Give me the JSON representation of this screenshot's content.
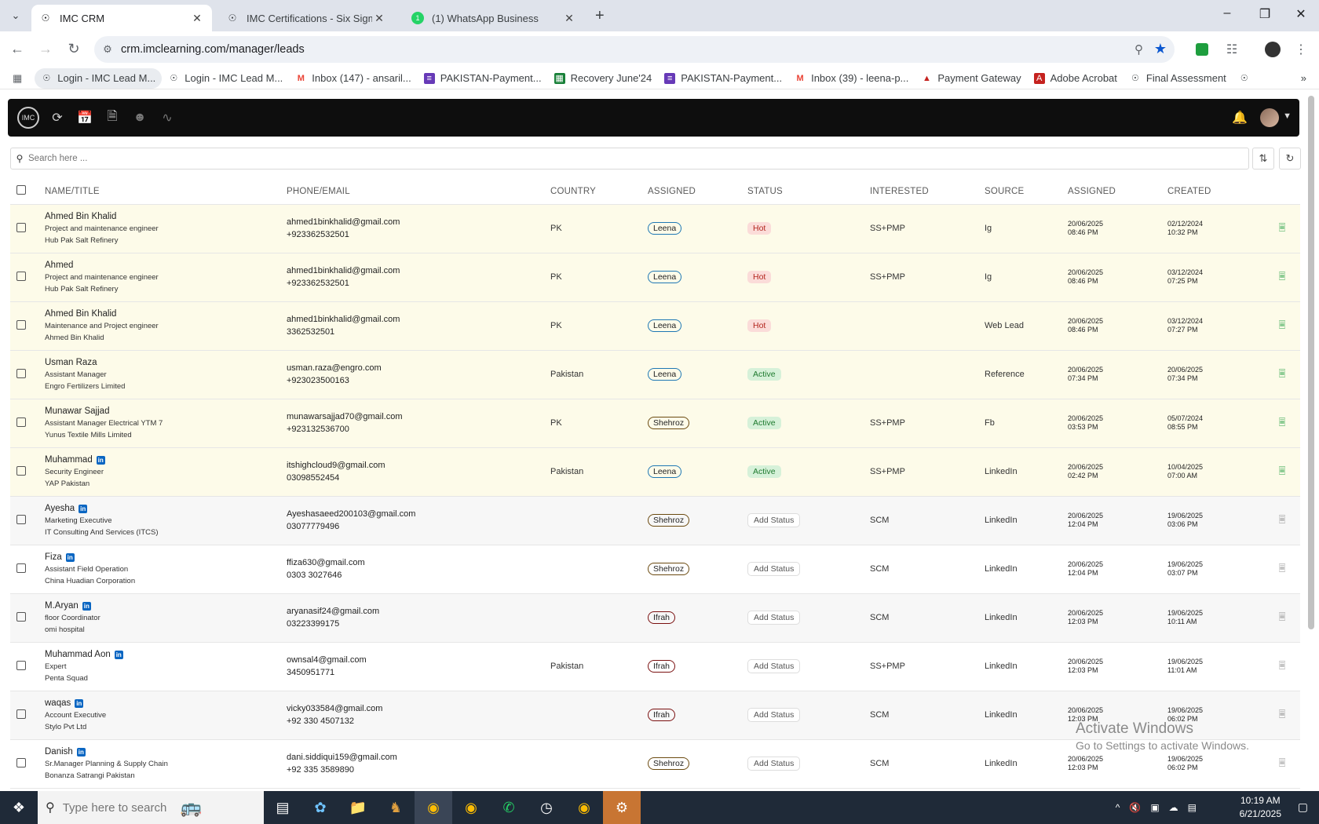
{
  "browser": {
    "tabs": [
      {
        "title": "IMC CRM",
        "active": true
      },
      {
        "title": "IMC Certifications - Six Sigma G",
        "active": false
      },
      {
        "title": "(1) WhatsApp Business",
        "active": false
      }
    ],
    "url": "crm.imclearning.com/manager/leads",
    "bookmarks": [
      "Login - IMC Lead M...",
      "Login - IMC Lead M...",
      "Inbox (147) - ansaril...",
      "PAKISTAN-Payment...",
      "Recovery June'24",
      "PAKISTAN-Payment...",
      "Inbox (39) - leena-p...",
      "Payment Gateway",
      "Adobe Acrobat",
      "Final Assessment"
    ]
  },
  "search": {
    "placeholder": "Search here ..."
  },
  "columns": [
    "NAME/TITLE",
    "PHONE/EMAIL",
    "COUNTRY",
    "ASSIGNED",
    "STATUS",
    "INTERESTED",
    "SOURCE",
    "ASSIGNED",
    "CREATED"
  ],
  "leads": [
    {
      "name": "Ahmed Bin Khalid",
      "title": "Project and maintenance engineer",
      "company": "Hub Pak Salt Refinery",
      "email": "ahmed1binkhalid@gmail.com",
      "phone": "+923362532501",
      "country": "PK",
      "assigned": "Leena",
      "status": "Hot",
      "interested": "SS+PMP",
      "source": "Ig",
      "assigned_date": "20/06/2025",
      "assigned_time": "08:46 PM",
      "created_date": "02/12/2024",
      "created_time": "10:32 PM",
      "linkedin": false
    },
    {
      "name": "Ahmed",
      "title": "Project and maintenance engineer",
      "company": "Hub Pak Salt Refinery",
      "email": "ahmed1binkhalid@gmail.com",
      "phone": "+923362532501",
      "country": "PK",
      "assigned": "Leena",
      "status": "Hot",
      "interested": "SS+PMP",
      "source": "Ig",
      "assigned_date": "20/06/2025",
      "assigned_time": "08:46 PM",
      "created_date": "03/12/2024",
      "created_time": "07:25 PM",
      "linkedin": false
    },
    {
      "name": "Ahmed Bin Khalid",
      "title": "Maintenance and Project engineer",
      "company": "Ahmed Bin Khalid",
      "email": "ahmed1binkhalid@gmail.com",
      "phone": "3362532501",
      "country": "PK",
      "assigned": "Leena",
      "status": "Hot",
      "interested": "",
      "source": "Web Lead",
      "assigned_date": "20/06/2025",
      "assigned_time": "08:46 PM",
      "created_date": "03/12/2024",
      "created_time": "07:27 PM",
      "linkedin": false
    },
    {
      "name": "Usman Raza",
      "title": "Assistant Manager",
      "company": "Engro Fertilizers Limited",
      "email": "usman.raza@engro.com",
      "phone": "+923023500163",
      "country": "Pakistan",
      "assigned": "Leena",
      "status": "Active",
      "interested": "",
      "source": "Reference",
      "assigned_date": "20/06/2025",
      "assigned_time": "07:34 PM",
      "created_date": "20/06/2025",
      "created_time": "07:34 PM",
      "linkedin": false
    },
    {
      "name": "Munawar Sajjad",
      "title": "Assistant Manager Electrical YTM 7",
      "company": "Yunus Textile Mills Limited",
      "email": "munawarsajjad70@gmail.com",
      "phone": "+923132536700",
      "country": "PK",
      "assigned": "Shehroz",
      "status": "Active",
      "interested": "SS+PMP",
      "source": "Fb",
      "assigned_date": "20/06/2025",
      "assigned_time": "03:53 PM",
      "created_date": "05/07/2024",
      "created_time": "08:55 PM",
      "linkedin": false
    },
    {
      "name": "Muhammad",
      "title": "Security Engineer",
      "company": "YAP Pakistan",
      "email": "itshighcloud9@gmail.com",
      "phone": "03098552454",
      "country": "Pakistan",
      "assigned": "Leena",
      "status": "Active",
      "interested": "SS+PMP",
      "source": "LinkedIn",
      "assigned_date": "20/06/2025",
      "assigned_time": "02:42 PM",
      "created_date": "10/04/2025",
      "created_time": "07:00 AM",
      "linkedin": true
    },
    {
      "name": "Ayesha",
      "title": "Marketing Executive",
      "company": "IT Consulting And Services (ITCS)",
      "email": "Ayeshasaeed200103@gmail.com",
      "phone": "03077779496",
      "country": "",
      "assigned": "Shehroz",
      "status": "Add Status",
      "interested": "SCM",
      "source": "LinkedIn",
      "assigned_date": "20/06/2025",
      "assigned_time": "12:04 PM",
      "created_date": "19/06/2025",
      "created_time": "03:06 PM",
      "linkedin": true
    },
    {
      "name": "Fiza",
      "title": "Assistant Field Operation",
      "company": "China Huadian Corporation",
      "email": "ffiza630@gmail.com",
      "phone": "0303 3027646",
      "country": "",
      "assigned": "Shehroz",
      "status": "Add Status",
      "interested": "SCM",
      "source": "LinkedIn",
      "assigned_date": "20/06/2025",
      "assigned_time": "12:04 PM",
      "created_date": "19/06/2025",
      "created_time": "03:07 PM",
      "linkedin": true
    },
    {
      "name": "M.Aryan",
      "title": "floor Coordinator",
      "company": "omi hospital",
      "email": "aryanasif24@gmail.com",
      "phone": "03223399175",
      "country": "",
      "assigned": "Ifrah",
      "status": "Add Status",
      "interested": "SCM",
      "source": "LinkedIn",
      "assigned_date": "20/06/2025",
      "assigned_time": "12:03 PM",
      "created_date": "19/06/2025",
      "created_time": "10:11 AM",
      "linkedin": true
    },
    {
      "name": "Muhammad Aon",
      "title": "Expert",
      "company": "Penta Squad",
      "email": "ownsal4@gmail.com",
      "phone": "3450951771",
      "country": "Pakistan",
      "assigned": "Ifrah",
      "status": "Add Status",
      "interested": "SS+PMP",
      "source": "LinkedIn",
      "assigned_date": "20/06/2025",
      "assigned_time": "12:03 PM",
      "created_date": "19/06/2025",
      "created_time": "11:01 AM",
      "linkedin": true
    },
    {
      "name": "waqas",
      "title": "Account Executive",
      "company": "Stylo Pvt Ltd",
      "email": "vicky033584@gmail.com",
      "phone": "+92 330 4507132",
      "country": "",
      "assigned": "Ifrah",
      "status": "Add Status",
      "interested": "SCM",
      "source": "LinkedIn",
      "assigned_date": "20/06/2025",
      "assigned_time": "12:03 PM",
      "created_date": "19/06/2025",
      "created_time": "06:02 PM",
      "linkedin": true
    },
    {
      "name": "Danish",
      "title": "Sr.Manager Planning & Supply Chain",
      "company": "Bonanza Satrangi Pakistan",
      "email": "dani.siddiqui159@gmail.com",
      "phone": "+92 335 3589890",
      "country": "",
      "assigned": "Shehroz",
      "status": "Add Status",
      "interested": "SCM",
      "source": "LinkedIn",
      "assigned_date": "20/06/2025",
      "assigned_time": "12:03 PM",
      "created_date": "19/06/2025",
      "created_time": "06:02 PM",
      "linkedin": true
    }
  ],
  "assignee_colors": {
    "Leena": "#1f78b4",
    "Shehroz": "#6b4a10",
    "Ifrah": "#7a1010"
  },
  "watermark": {
    "line1": "Activate Windows",
    "line2": "Go to Settings to activate Windows."
  },
  "taskbar": {
    "search_placeholder": "Type here to search",
    "time": "10:19 AM",
    "date": "6/21/2025"
  }
}
